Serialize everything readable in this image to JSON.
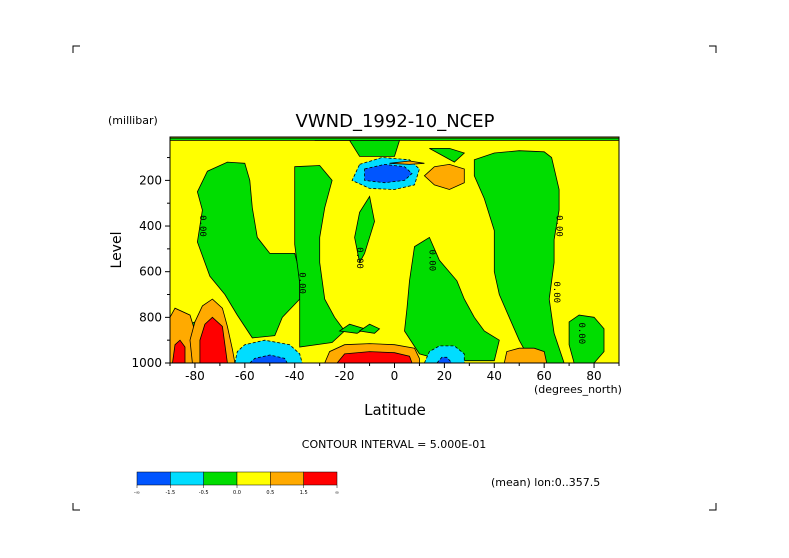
{
  "chart_data": {
    "type": "contour",
    "title": "VWND_1992-10_NCEP",
    "y_units_label": "(millibar)",
    "ylabel": "Level",
    "xlabel": "Latitude",
    "x_units_label": "(degrees_north)",
    "x_ticks": [
      "-80",
      "-60",
      "-40",
      "-20",
      "0",
      "20",
      "40",
      "60",
      "80"
    ],
    "x_tick_values": [
      -80,
      -60,
      -40,
      -20,
      0,
      20,
      40,
      60,
      80
    ],
    "y_ticks": [
      "200",
      "400",
      "600",
      "800",
      "1000"
    ],
    "y_tick_values": [
      200,
      400,
      600,
      800,
      1000
    ],
    "xlim": [
      -90,
      90
    ],
    "ylim": [
      1000,
      10
    ],
    "contour_interval_label": "CONTOUR INTERVAL = 5.000E-01",
    "region_label": "(mean) lon:0..357.5",
    "zero_contour_label": "0.00",
    "zero_contour_label_positions": [
      [
        -78,
        400
      ],
      [
        -38,
        650
      ],
      [
        -15,
        540
      ],
      [
        14,
        550
      ],
      [
        65,
        400
      ],
      [
        64,
        690
      ],
      [
        74,
        870
      ]
    ],
    "colorbar": {
      "colors": [
        "#0055ff",
        "#00ddff",
        "#00dd00",
        "#ffff00",
        "#ffaa00",
        "#ff0000"
      ],
      "tick_labels": [
        "-∞",
        "-1.5",
        "-0.5",
        "0.0",
        "0.5",
        "1.5",
        "∞"
      ]
    },
    "background_color": "#ffff00",
    "regions": [
      {
        "level": "green",
        "color": "#00dd00",
        "polygon": [
          [
            -90,
            15
          ],
          [
            90,
            15
          ],
          [
            90,
            25
          ],
          [
            -90,
            25
          ]
        ]
      },
      {
        "level": "green",
        "color": "#00dd00",
        "polygon": [
          [
            -32,
            25
          ],
          [
            -18,
            25
          ],
          [
            -14,
            95
          ],
          [
            0,
            95
          ],
          [
            2,
            25
          ],
          [
            -32,
            25
          ]
        ]
      },
      {
        "level": "green",
        "color": "#00dd00",
        "polygon": [
          [
            -77,
            330
          ],
          [
            -79,
            250
          ],
          [
            -75,
            160
          ],
          [
            -67,
            120
          ],
          [
            -60,
            125
          ],
          [
            -58,
            200
          ],
          [
            -57,
            320
          ],
          [
            -55,
            450
          ],
          [
            -50,
            520
          ],
          [
            -40,
            520
          ],
          [
            -38,
            600
          ],
          [
            -38,
            720
          ],
          [
            -45,
            800
          ],
          [
            -48,
            880
          ],
          [
            -57,
            890
          ],
          [
            -63,
            790
          ],
          [
            -68,
            700
          ],
          [
            -74,
            620
          ],
          [
            -79,
            470
          ]
        ]
      },
      {
        "level": "green",
        "color": "#00dd00",
        "polygon": [
          [
            -40,
            140
          ],
          [
            -30,
            135
          ],
          [
            -25,
            200
          ],
          [
            -28,
            320
          ],
          [
            -30,
            450
          ],
          [
            -30,
            560
          ],
          [
            -28,
            720
          ],
          [
            -24,
            800
          ],
          [
            -20,
            860
          ],
          [
            -25,
            910
          ],
          [
            -38,
            930
          ],
          [
            -38,
            800
          ],
          [
            -38,
            650
          ],
          [
            -40,
            480
          ],
          [
            -40,
            300
          ]
        ]
      },
      {
        "level": "green",
        "color": "#00dd00",
        "polygon": [
          [
            -16,
            450
          ],
          [
            -14,
            340
          ],
          [
            -10,
            270
          ],
          [
            -8,
            380
          ],
          [
            -12,
            520
          ],
          [
            -14,
            560
          ]
        ]
      },
      {
        "level": "green",
        "color": "#00dd00",
        "polygon": [
          [
            8,
            490
          ],
          [
            14,
            450
          ],
          [
            18,
            550
          ],
          [
            25,
            640
          ],
          [
            28,
            720
          ],
          [
            32,
            800
          ],
          [
            36,
            860
          ],
          [
            42,
            900
          ],
          [
            40,
            990
          ],
          [
            20,
            990
          ],
          [
            10,
            960
          ],
          [
            4,
            860
          ],
          [
            5,
            760
          ],
          [
            6,
            640
          ]
        ]
      },
      {
        "level": "green",
        "color": "#00dd00",
        "polygon": [
          [
            24,
            120
          ],
          [
            28,
            80
          ],
          [
            22,
            60
          ],
          [
            14,
            60
          ]
        ]
      },
      {
        "level": "green",
        "color": "#00dd00",
        "polygon": [
          [
            32,
            110
          ],
          [
            40,
            80
          ],
          [
            50,
            70
          ],
          [
            60,
            75
          ],
          [
            63,
            100
          ],
          [
            66,
            240
          ],
          [
            66,
            330
          ],
          [
            64,
            460
          ],
          [
            64,
            560
          ],
          [
            62,
            720
          ],
          [
            64,
            870
          ],
          [
            68,
            1000
          ],
          [
            55,
            1000
          ],
          [
            50,
            900
          ],
          [
            46,
            800
          ],
          [
            42,
            700
          ],
          [
            40,
            600
          ],
          [
            40,
            420
          ],
          [
            36,
            280
          ],
          [
            32,
            180
          ]
        ]
      },
      {
        "level": "green",
        "color": "#00dd00",
        "polygon": [
          [
            -78,
            810
          ],
          [
            -84,
            840
          ],
          [
            -86,
            900
          ],
          [
            -82,
            960
          ],
          [
            -78,
            920
          ]
        ]
      },
      {
        "level": "green",
        "color": "#00dd00",
        "polygon": [
          [
            -22,
            860
          ],
          [
            -18,
            830
          ],
          [
            -12,
            850
          ],
          [
            -15,
            870
          ]
        ]
      },
      {
        "level": "green",
        "color": "#00dd00",
        "polygon": [
          [
            -14,
            860
          ],
          [
            -10,
            830
          ],
          [
            -6,
            850
          ],
          [
            -8,
            870
          ]
        ]
      },
      {
        "level": "green",
        "color": "#00dd00",
        "polygon": [
          [
            70,
            820
          ],
          [
            74,
            790
          ],
          [
            80,
            800
          ],
          [
            84,
            850
          ],
          [
            84,
            950
          ],
          [
            80,
            1000
          ],
          [
            72,
            1000
          ],
          [
            70,
            920
          ]
        ]
      },
      {
        "level": "cyan",
        "color": "#00ddff",
        "polygon": [
          [
            -14,
            130
          ],
          [
            -5,
            100
          ],
          [
            6,
            110
          ],
          [
            10,
            150
          ],
          [
            8,
            220
          ],
          [
            0,
            240
          ],
          [
            -10,
            235
          ],
          [
            -17,
            200
          ]
        ]
      },
      {
        "level": "blue",
        "color": "#0055ff",
        "polygon": [
          [
            -12,
            150
          ],
          [
            -4,
            130
          ],
          [
            4,
            140
          ],
          [
            7,
            170
          ],
          [
            4,
            200
          ],
          [
            -4,
            210
          ],
          [
            -12,
            200
          ]
        ]
      },
      {
        "level": "cyan",
        "color": "#00ddff",
        "polygon": [
          [
            -64,
            1000
          ],
          [
            -63,
            950
          ],
          [
            -60,
            920
          ],
          [
            -52,
            900
          ],
          [
            -42,
            920
          ],
          [
            -38,
            960
          ],
          [
            -37,
            1000
          ]
        ]
      },
      {
        "level": "blue",
        "color": "#0055ff",
        "polygon": [
          [
            -58,
            1000
          ],
          [
            -56,
            980
          ],
          [
            -50,
            965
          ],
          [
            -44,
            980
          ],
          [
            -43,
            1000
          ]
        ]
      },
      {
        "level": "cyan",
        "color": "#00ddff",
        "polygon": [
          [
            12,
            1000
          ],
          [
            14,
            950
          ],
          [
            18,
            925
          ],
          [
            24,
            925
          ],
          [
            28,
            960
          ],
          [
            28,
            1000
          ]
        ]
      },
      {
        "level": "blue",
        "color": "#0055ff",
        "polygon": [
          [
            17,
            1000
          ],
          [
            19,
            975
          ],
          [
            21,
            975
          ],
          [
            23,
            1000
          ]
        ]
      },
      {
        "level": "orange",
        "color": "#ffaa00",
        "polygon": [
          [
            -90,
            800
          ],
          [
            -88,
            760
          ],
          [
            -82,
            790
          ],
          [
            -80,
            860
          ],
          [
            -80,
            1000
          ],
          [
            -90,
            1000
          ]
        ]
      },
      {
        "level": "orange",
        "color": "#ffaa00",
        "polygon": [
          [
            -81,
            1000
          ],
          [
            -82,
            900
          ],
          [
            -80,
            820
          ],
          [
            -77,
            750
          ],
          [
            -73,
            720
          ],
          [
            -69,
            760
          ],
          [
            -67,
            840
          ],
          [
            -65,
            940
          ],
          [
            -64,
            1000
          ]
        ]
      },
      {
        "level": "orange",
        "color": "#ffaa00",
        "polygon": [
          [
            -28,
            1000
          ],
          [
            -26,
            950
          ],
          [
            -20,
            920
          ],
          [
            -10,
            915
          ],
          [
            0,
            920
          ],
          [
            8,
            935
          ],
          [
            10,
            980
          ],
          [
            10,
            1000
          ]
        ]
      },
      {
        "level": "orange",
        "color": "#ffaa00",
        "polygon": [
          [
            12,
            180
          ],
          [
            16,
            140
          ],
          [
            22,
            130
          ],
          [
            28,
            150
          ],
          [
            28,
            210
          ],
          [
            22,
            240
          ],
          [
            16,
            220
          ]
        ]
      },
      {
        "level": "orange",
        "color": "#ffaa00",
        "polygon": [
          [
            44,
            1000
          ],
          [
            45,
            950
          ],
          [
            50,
            935
          ],
          [
            56,
            935
          ],
          [
            60,
            950
          ],
          [
            61,
            1000
          ]
        ]
      },
      {
        "level": "orange",
        "color": "#ffaa00",
        "polygon": [
          [
            -2,
            125
          ],
          [
            6,
            115
          ],
          [
            12,
            125
          ],
          [
            6,
            130
          ]
        ]
      },
      {
        "level": "red",
        "color": "#ff0000",
        "polygon": [
          [
            -89,
            1000
          ],
          [
            -88,
            920
          ],
          [
            -86,
            900
          ],
          [
            -84,
            930
          ],
          [
            -84,
            1000
          ]
        ]
      },
      {
        "level": "red",
        "color": "#ff0000",
        "polygon": [
          [
            -78,
            1000
          ],
          [
            -78,
            900
          ],
          [
            -76,
            830
          ],
          [
            -73,
            800
          ],
          [
            -69,
            840
          ],
          [
            -68,
            920
          ],
          [
            -67,
            1000
          ]
        ]
      },
      {
        "level": "red",
        "color": "#ff0000",
        "polygon": [
          [
            -23,
            1000
          ],
          [
            -20,
            960
          ],
          [
            -10,
            950
          ],
          [
            0,
            955
          ],
          [
            6,
            970
          ],
          [
            7,
            1000
          ]
        ]
      }
    ]
  }
}
